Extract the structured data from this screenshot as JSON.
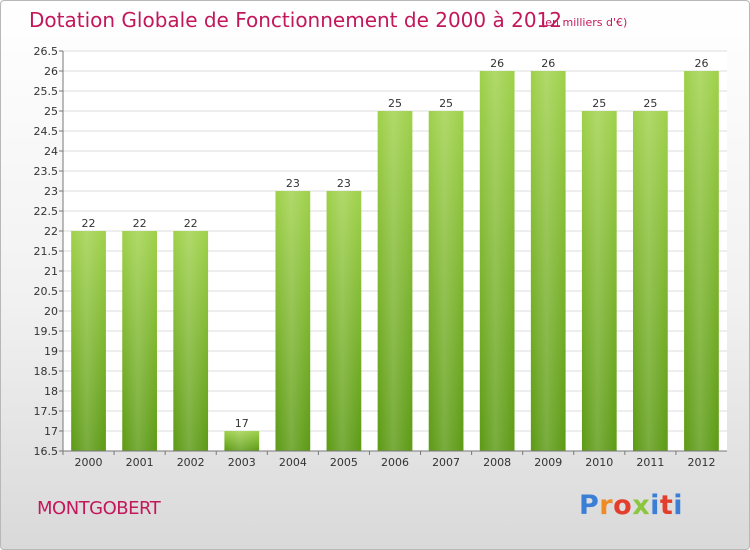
{
  "title": "Dotation Globale de Fonctionnement de 2000 à 2012",
  "unit_note": "(en milliers d'€)",
  "commune": "MONTGOBERT",
  "logo": {
    "text": "Proxiti",
    "colors": [
      "#3a7fd5",
      "#f08a24",
      "#e33e2b",
      "#8cc63f",
      "#3a7fd5",
      "#e33e2b"
    ]
  },
  "chart_data": {
    "type": "bar",
    "categories": [
      "2000",
      "2001",
      "2002",
      "2003",
      "2004",
      "2005",
      "2006",
      "2007",
      "2008",
      "2009",
      "2010",
      "2011",
      "2012"
    ],
    "values": [
      22,
      22,
      22,
      17,
      23,
      23,
      25,
      25,
      26,
      26,
      25,
      25,
      26
    ],
    "title": "Dotation Globale de Fonctionnement de 2000 à 2012",
    "xlabel": "",
    "ylabel": "",
    "ylim": [
      16.5,
      26.5
    ],
    "yticks": [
      "16.5",
      "17",
      "17.5",
      "18",
      "18.5",
      "19",
      "19.5",
      "20",
      "20.5",
      "21",
      "21.5",
      "22",
      "22.5",
      "23",
      "23.5",
      "24",
      "24.5",
      "25",
      "25.5",
      "26",
      "26.5"
    ],
    "grid": true,
    "bar_color": "#78b92a"
  }
}
